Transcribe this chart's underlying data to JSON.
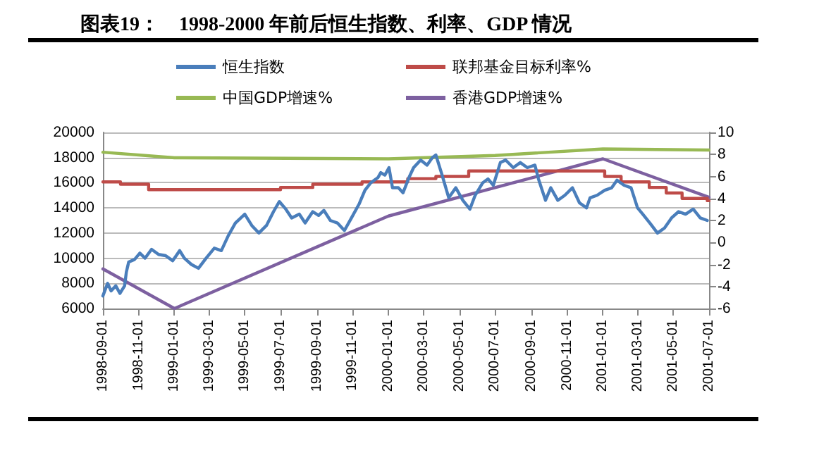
{
  "chart_data": {
    "type": "line",
    "title": "图表19：　1998-2000 年前后恒生指数、利率、GDP 情况",
    "legend": "top",
    "grid": "y",
    "marker": "none",
    "line_style": "solid",
    "xlim": [
      "1998-09-01",
      "2001-07-01"
    ],
    "xticks": [
      "1998-09-01",
      "1998-11-01",
      "1999-01-01",
      "1999-03-01",
      "1999-05-01",
      "1999-07-01",
      "1999-09-01",
      "1999-11-01",
      "2000-01-01",
      "2000-03-01",
      "2000-05-01",
      "2000-07-01",
      "2000-09-01",
      "2000-11-01",
      "2001-01-01",
      "2001-03-01",
      "2001-05-01",
      "2001-07-01"
    ],
    "ylim": [
      6000,
      20000
    ],
    "yticks": [
      6000,
      8000,
      10000,
      12000,
      14000,
      16000,
      18000,
      20000
    ],
    "y2lim": [
      -6,
      10
    ],
    "y2ticks": [
      -6,
      -4,
      -2,
      0,
      2,
      4,
      6,
      8,
      10
    ],
    "series": [
      {
        "name": "恒生指数",
        "color": "#4a7ebb",
        "x": [
          "1998-09-01",
          "1998-09-09",
          "1998-09-15",
          "1998-09-23",
          "1998-09-30",
          "1998-10-08",
          "1998-10-11",
          "1998-10-15",
          "1998-10-25",
          "1998-11-03",
          "1998-11-12",
          "1998-11-23",
          "1998-12-05",
          "1998-12-17",
          "1998-12-29",
          "1999-01-10",
          "1999-01-18",
          "1999-01-30",
          "1999-02-11",
          "1999-02-24",
          "1999-03-10",
          "1999-03-22",
          "1999-04-03",
          "1999-04-15",
          "1999-05-01",
          "1999-05-13",
          "1999-05-25",
          "1999-06-07",
          "1999-06-19",
          "1999-06-29",
          "1999-07-10",
          "1999-07-20",
          "1999-08-02",
          "1999-08-12",
          "1999-08-25",
          "1999-09-04",
          "1999-09-13",
          "1999-09-24",
          "1999-10-06",
          "1999-10-18",
          "1999-10-30",
          "1999-11-12",
          "1999-11-22",
          "1999-12-02",
          "1999-12-14",
          "1999-12-19",
          "1999-12-26",
          "2000-01-02",
          "2000-01-08",
          "2000-01-18",
          "2000-01-26",
          "2000-02-05",
          "2000-02-13",
          "2000-02-25",
          "2000-03-07",
          "2000-03-16",
          "2000-03-22",
          "2000-04-01",
          "2000-04-13",
          "2000-04-25",
          "2000-05-07",
          "2000-05-19",
          "2000-05-28",
          "2000-06-10",
          "2000-06-19",
          "2000-06-28",
          "2000-07-10",
          "2000-07-19",
          "2000-08-01",
          "2000-08-13",
          "2000-08-25",
          "2000-09-07",
          "2000-09-13",
          "2000-09-25",
          "2000-10-04",
          "2000-10-16",
          "2000-10-28",
          "2000-11-10",
          "2000-11-22",
          "2000-12-04",
          "2000-12-10",
          "2000-12-22",
          "2001-01-04",
          "2001-01-16",
          "2001-01-25",
          "2001-02-06",
          "2001-02-18",
          "2001-03-01",
          "2001-03-10",
          "2001-03-22",
          "2001-04-04",
          "2001-04-16",
          "2001-04-28",
          "2001-05-10",
          "2001-05-22",
          "2001-06-04",
          "2001-06-16",
          "2001-06-28"
        ],
        "values": [
          7000,
          8000,
          7400,
          7800,
          7200,
          7800,
          8900,
          9700,
          9900,
          10400,
          10000,
          10700,
          10300,
          10200,
          9800,
          10600,
          10000,
          9500,
          9200,
          10000,
          10800,
          10600,
          11800,
          12800,
          13500,
          12600,
          12000,
          12600,
          13700,
          14500,
          13900,
          13200,
          13500,
          12800,
          13700,
          13400,
          13800,
          13000,
          12800,
          12200,
          13200,
          14300,
          15400,
          16000,
          16400,
          16800,
          16600,
          17200,
          15600,
          15600,
          15200,
          16400,
          17200,
          17800,
          17400,
          18000,
          18200,
          16700,
          14800,
          15600,
          14600,
          13900,
          15000,
          16000,
          16300,
          15800,
          17600,
          17800,
          17200,
          17600,
          17200,
          17400,
          16300,
          14600,
          15600,
          14600,
          15000,
          15600,
          14400,
          14000,
          14800,
          15000,
          15400,
          15600,
          16200,
          15800,
          15600,
          14000,
          13500,
          12800,
          12000,
          12400,
          13200,
          13700,
          13500,
          13900,
          13200,
          13000
        ]
      },
      {
        "name": "联邦基金目标利率%",
        "color": "#be4b48",
        "type": "step",
        "axis": "y2",
        "x": [
          "1998-09-01",
          "1998-10-01",
          "1998-11-18",
          "1999-07-01",
          "1999-08-25",
          "1999-11-17",
          "2000-02-03",
          "2000-03-22",
          "2000-05-17",
          "2001-01-04",
          "2001-02-01",
          "2001-03-21",
          "2001-04-19",
          "2001-05-16",
          "2001-06-28",
          "2001-07-01"
        ],
        "values": [
          5.5,
          5.3,
          4.8,
          5.0,
          5.3,
          5.5,
          5.8,
          6.0,
          6.5,
          6.0,
          5.5,
          5.0,
          4.5,
          4.0,
          3.8,
          3.8
        ]
      },
      {
        "name": "中国GDP增速%",
        "color": "#98b954",
        "axis": "y2",
        "x": [
          "1998-09-01",
          "1999-01-01",
          "2000-01-01",
          "2000-07-01",
          "2001-01-01",
          "2001-07-01"
        ],
        "values": [
          8.2,
          7.7,
          7.6,
          7.9,
          8.5,
          8.4
        ]
      },
      {
        "name": "香港GDP增速%",
        "color": "#7d60a0",
        "axis": "y2",
        "x": [
          "1998-09-01",
          "1999-01-01",
          "2000-01-01",
          "2001-01-01",
          "2001-07-01"
        ],
        "values": [
          -2.4,
          -6.0,
          2.4,
          7.6,
          4.1
        ]
      }
    ]
  }
}
